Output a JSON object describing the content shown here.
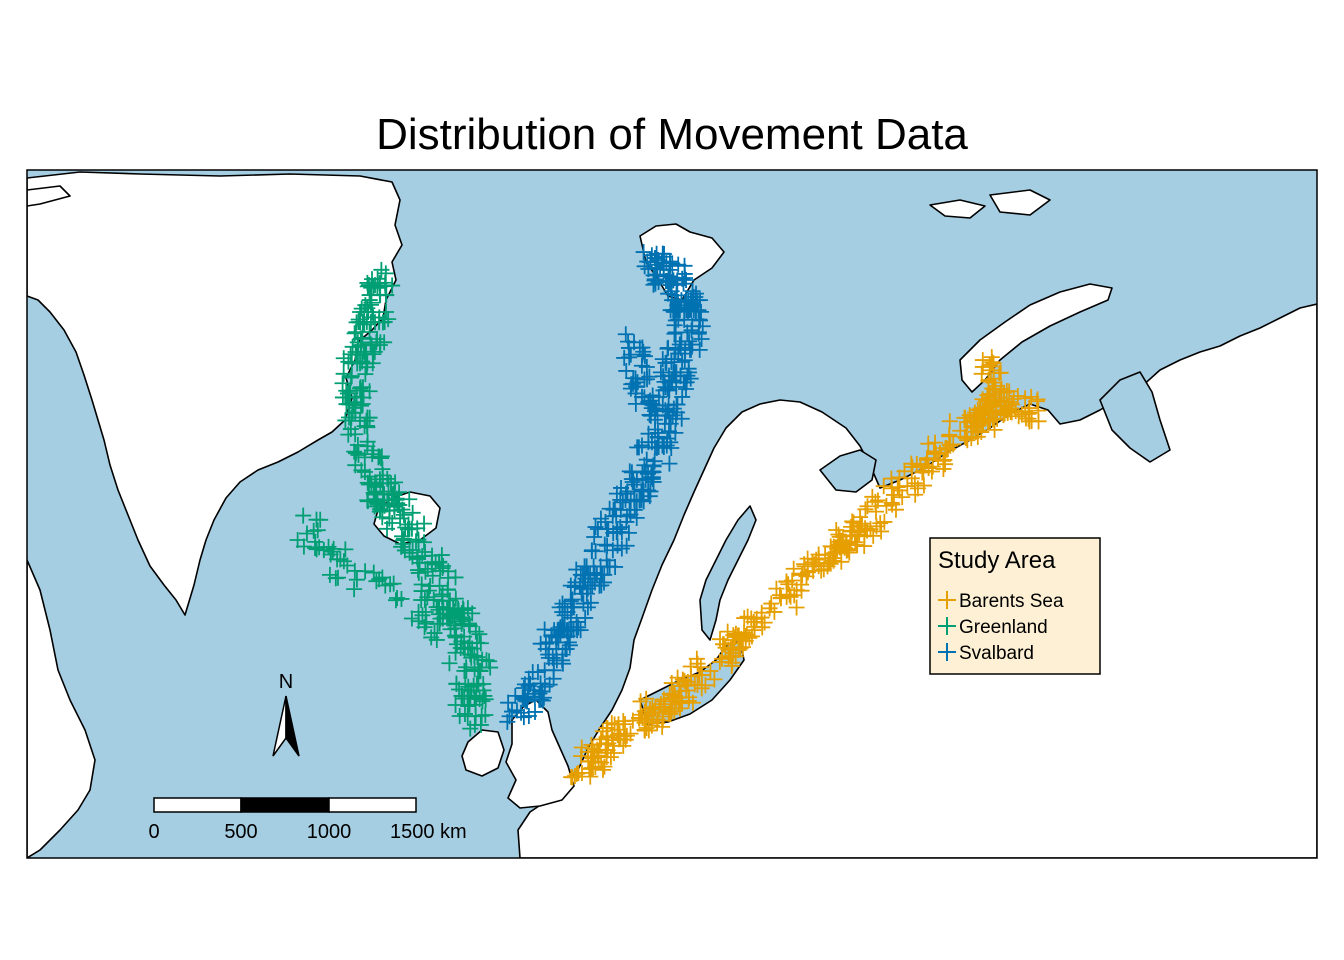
{
  "title": "Distribution of Movement Data",
  "colors": {
    "ocean": "#a6cee3",
    "land": "#ffffff",
    "coast": "#000000",
    "legend_bg": "#fdf0d5"
  },
  "legend": {
    "title": "Study Area",
    "items": [
      {
        "label": "Barents Sea",
        "color": "#e69f00"
      },
      {
        "label": "Greenland",
        "color": "#009e73"
      },
      {
        "label": "Svalbard",
        "color": "#0072b2"
      }
    ]
  },
  "north_arrow": {
    "label": "N"
  },
  "scale_bar": {
    "ticks": [
      "0",
      "500",
      "1000",
      "1500 km"
    ]
  }
}
